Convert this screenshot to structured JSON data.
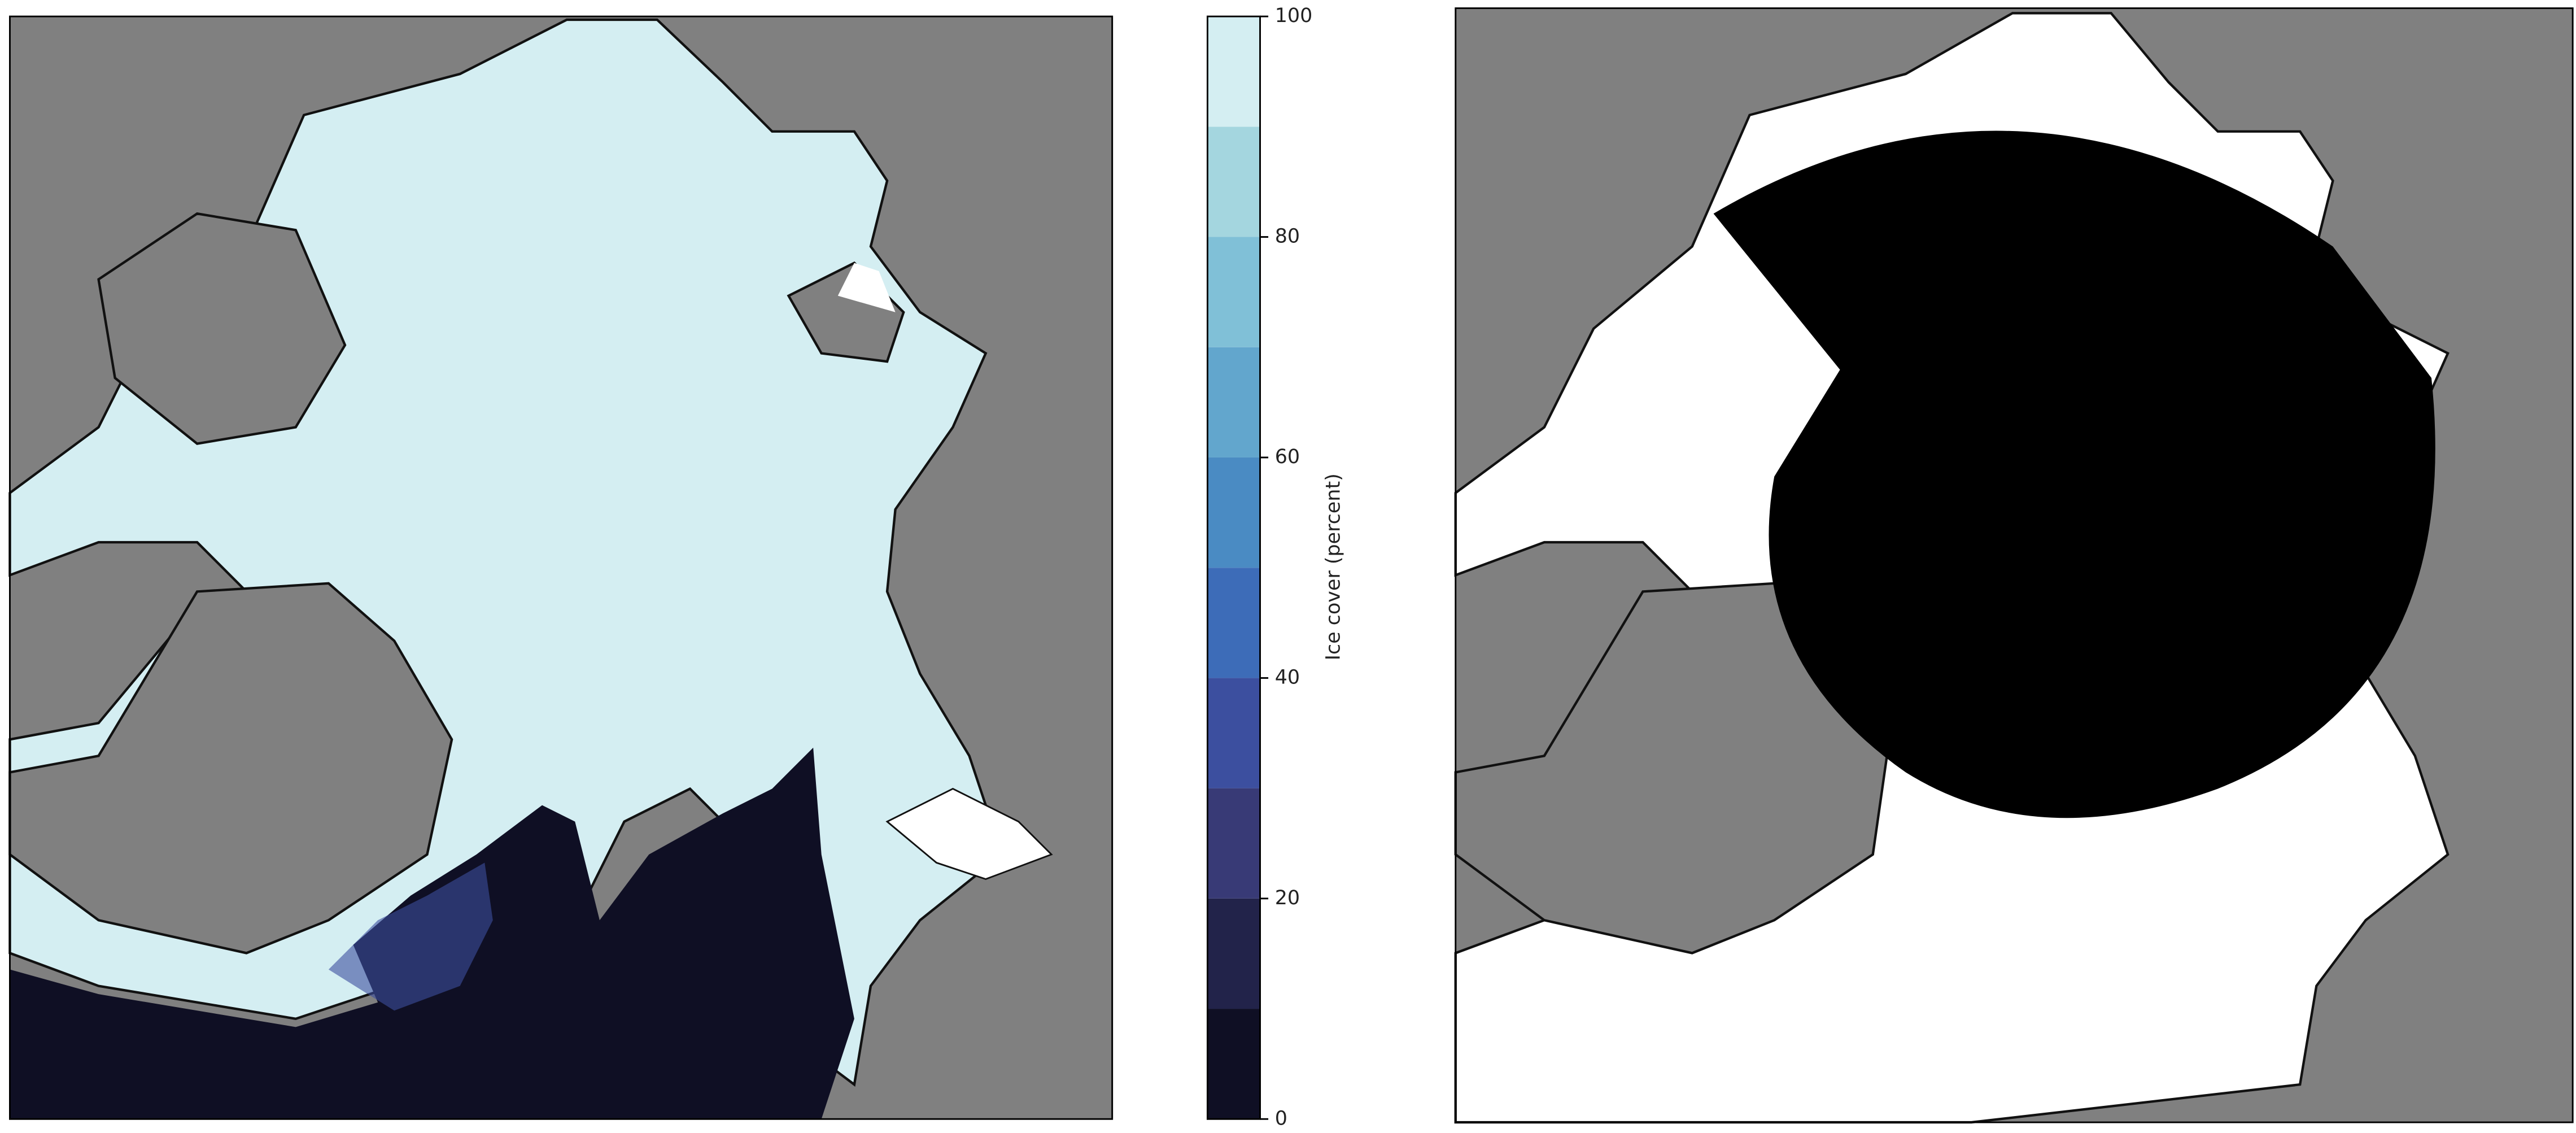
{
  "colorbar": {
    "label": "Ice cover (percent)",
    "lim": [
      0,
      100
    ],
    "ticks": [
      0,
      20,
      40,
      60,
      80,
      100
    ],
    "levels": [
      0,
      10,
      20,
      30,
      40,
      50,
      60,
      70,
      80,
      90,
      100
    ],
    "colors": [
      "#0f0f24",
      "#22234a",
      "#383a76",
      "#3c4f9f",
      "#3d6cb8",
      "#4a8bc3",
      "#62a6cd",
      "#80c0d7",
      "#a4d6df",
      "#d4eef2"
    ]
  }
}
